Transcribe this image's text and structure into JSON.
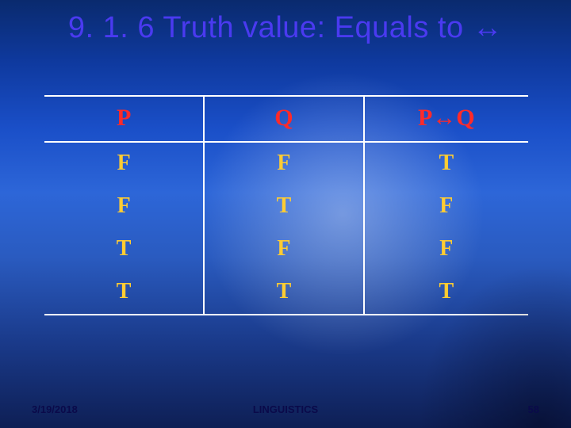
{
  "colors": {
    "title": "#4a3af0",
    "header": "#ff2a2a",
    "body": "#ffcc33",
    "footer": "#0a0a4a"
  },
  "title": "9. 1. 6 Truth value: Equals to ↔",
  "truth_table": {
    "type": "table",
    "columns": [
      "P",
      "Q",
      "P↔Q"
    ],
    "rows": [
      [
        "F",
        "F",
        "T"
      ],
      [
        "F",
        "T",
        "F"
      ],
      [
        "T",
        "F",
        "F"
      ],
      [
        "T",
        "T",
        "T"
      ]
    ],
    "col_widths_pct": [
      33,
      33,
      34
    ],
    "header_fontsize_pt": 22,
    "body_fontsize_pt": 21,
    "border_color": "#ffffff",
    "header_color": "#ff2a2a",
    "body_color": "#ffcc33",
    "font_family": "Times New Roman"
  },
  "footer": {
    "date": "3/19/2018",
    "subject": "LINGUISTICS",
    "page": "58"
  }
}
